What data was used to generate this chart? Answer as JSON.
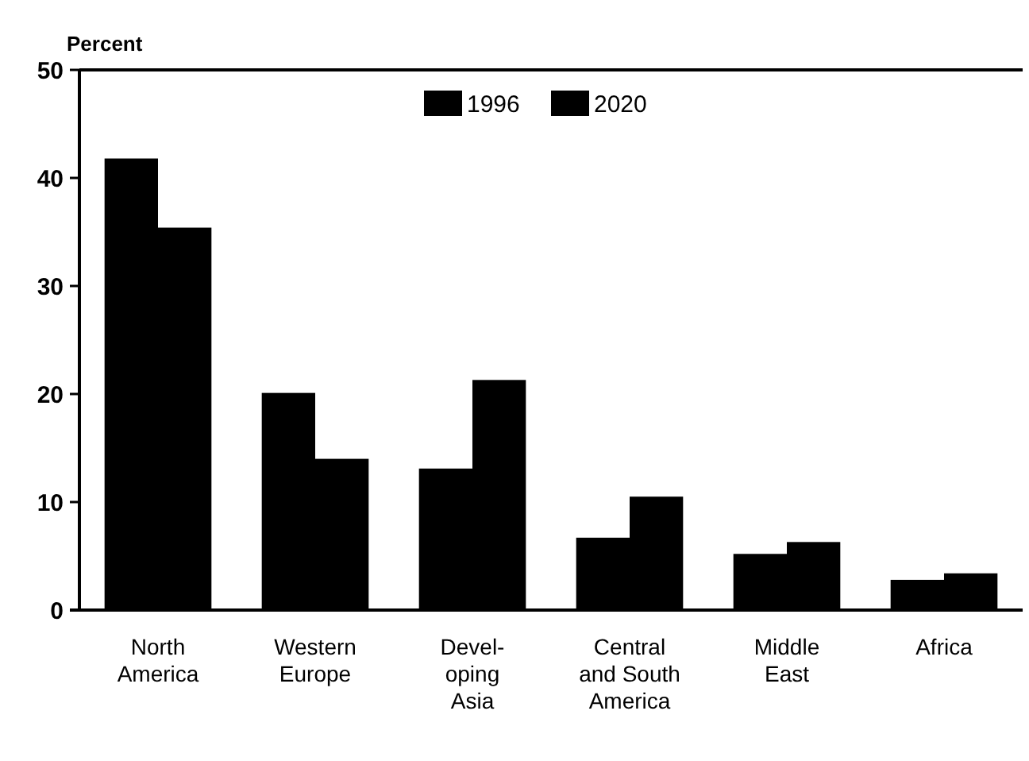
{
  "chart_data": {
    "type": "bar",
    "ylabel": "Percent",
    "categories": [
      "North\nAmerica",
      "Western\nEurope",
      "Devel-\noping\nAsia",
      "Central\nand South\nAmerica",
      "Middle\nEast",
      "Africa"
    ],
    "series": [
      {
        "name": "1996",
        "color": "#000000",
        "values": [
          41.8,
          20.1,
          13.1,
          6.7,
          5.2,
          2.8
        ]
      },
      {
        "name": "2020",
        "color": "#000000",
        "values": [
          35.4,
          14.0,
          21.3,
          10.5,
          6.3,
          3.4
        ]
      }
    ],
    "ylim": [
      0,
      50
    ],
    "yticks": [
      0,
      10,
      20,
      30,
      40,
      50
    ],
    "legend": "top"
  }
}
